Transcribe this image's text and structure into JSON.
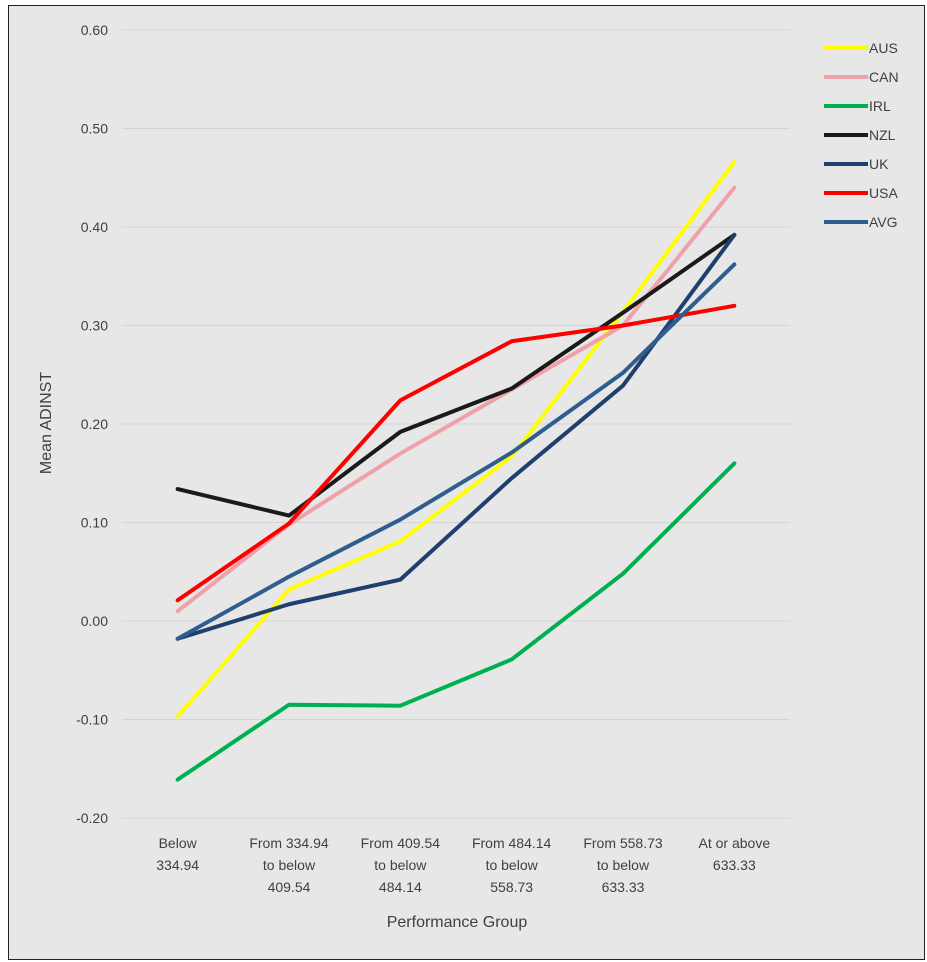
{
  "chart_data": {
    "type": "line",
    "title": "",
    "xlabel": "Performance Group",
    "ylabel": "Mean ADINST",
    "ylim": [
      -0.2,
      0.6
    ],
    "yticks": [
      "0.60",
      "0.50",
      "0.40",
      "0.30",
      "0.20",
      "0.10",
      "0.00",
      "-0.10",
      "-0.20"
    ],
    "categories": [
      [
        "Below",
        "334.94"
      ],
      [
        "From 334.94",
        "to below",
        "409.54"
      ],
      [
        "From 409.54",
        "to below",
        "484.14"
      ],
      [
        "From 484.14",
        "to below",
        "558.73"
      ],
      [
        "From 558.73",
        "to below",
        "633.33"
      ],
      [
        "At or above",
        "633.33"
      ]
    ],
    "grid": true,
    "legend_position": "right",
    "series": [
      {
        "name": "AUS",
        "color": "#ffff00",
        "values": [
          -0.097,
          0.032,
          0.081,
          0.167,
          0.314,
          0.466
        ]
      },
      {
        "name": "CAN",
        "color": "#f0a0a8",
        "values": [
          0.01,
          0.098,
          0.17,
          0.235,
          0.3,
          0.44
        ]
      },
      {
        "name": "IRL",
        "color": "#00b050",
        "values": [
          -0.161,
          -0.085,
          -0.086,
          -0.039,
          0.048,
          0.16
        ]
      },
      {
        "name": "NZL",
        "color": "#1a1a1a",
        "values": [
          0.134,
          0.107,
          0.192,
          0.236,
          0.313,
          0.392
        ]
      },
      {
        "name": "UK",
        "color": "#1f3f6e",
        "values": [
          -0.018,
          0.017,
          0.042,
          0.145,
          0.239,
          0.392
        ]
      },
      {
        "name": "USA",
        "color": "#ff0000",
        "values": [
          0.021,
          0.099,
          0.224,
          0.284,
          0.3,
          0.32
        ]
      },
      {
        "name": "AVG",
        "color": "#2e5d8e",
        "values": [
          -0.018,
          0.045,
          0.103,
          0.171,
          0.252,
          0.362
        ]
      }
    ]
  }
}
